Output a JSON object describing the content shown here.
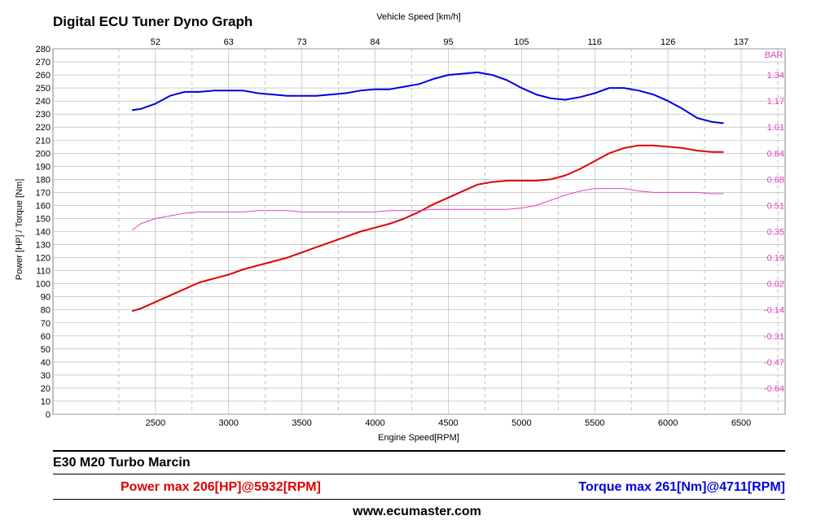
{
  "title": "Digital ECU Tuner Dyno Graph",
  "vehicle_name": "E30 M20 Turbo Marcin",
  "power_max_label": "Power max 206[HP]@5932[RPM]",
  "torque_max_label": "Torque max 261[Nm]@4711[RPM]",
  "website": "www.ecumaster.com",
  "colors": {
    "power": "#e00000",
    "torque": "#0000e0",
    "boost": "#e040c0",
    "grid": "#b0b0b0"
  },
  "chart_data": {
    "type": "line",
    "xlabel": "Engine Speed[RPM]",
    "ylabel": "Power [HP] / Torque [Nm]",
    "x2label": "Vehicle Speed [km/h]",
    "y2label": "BAR",
    "xlim": [
      1800,
      6800
    ],
    "ylim": [
      0,
      280
    ],
    "x_ticks": [
      2500,
      3000,
      3500,
      4000,
      4500,
      5000,
      5500,
      6000,
      6500
    ],
    "x_tick_labels": [
      "2500",
      "3000",
      "3500",
      "4000",
      "4500",
      "5000",
      "5500",
      "6000",
      "6500"
    ],
    "y_ticks": [
      0,
      10,
      20,
      30,
      40,
      50,
      60,
      70,
      80,
      90,
      100,
      110,
      120,
      130,
      140,
      150,
      160,
      170,
      180,
      190,
      200,
      210,
      220,
      230,
      240,
      250,
      260,
      270,
      280
    ],
    "y_tick_labels": [
      "0",
      "10",
      "20",
      "30",
      "40",
      "50",
      "60",
      "70",
      "80",
      "90",
      "100",
      "110",
      "120",
      "130",
      "140",
      "150",
      "160",
      "170",
      "180",
      "190",
      "200",
      "210",
      "220",
      "230",
      "240",
      "250",
      "260",
      "270",
      "280"
    ],
    "x2_ticks": [
      2500,
      3000,
      3500,
      4000,
      4500,
      5000,
      5500,
      6000,
      6500
    ],
    "x2_tick_labels": [
      "52",
      "63",
      "73",
      "84",
      "95",
      "105",
      "116",
      "126",
      "137"
    ],
    "y2_ticks": [
      80,
      100,
      120,
      140,
      160,
      180,
      200,
      220,
      240,
      260
    ],
    "y2_tick_labels": [
      "-0.64",
      "-0.47",
      "-0.31",
      "-0.14",
      "0.02",
      "0.19",
      "0.35",
      "0.51",
      "0.68",
      "0.84",
      "1.01",
      "1.17",
      "1.34"
    ],
    "y2_tick_positions": [
      20,
      40,
      60,
      80,
      100,
      120,
      140,
      160,
      180,
      200,
      220,
      240,
      260
    ],
    "vertical_dashed_grid": [
      2250,
      2750,
      3250,
      3750,
      4250,
      4750,
      5250,
      5750,
      6250,
      6750
    ],
    "grid": true,
    "series": [
      {
        "key": "torque",
        "x": [
          2340,
          2400,
          2500,
          2600,
          2700,
          2800,
          2900,
          3000,
          3100,
          3200,
          3300,
          3400,
          3500,
          3600,
          3700,
          3800,
          3900,
          4000,
          4100,
          4200,
          4300,
          4400,
          4500,
          4600,
          4700,
          4800,
          4900,
          5000,
          5100,
          5200,
          5300,
          5400,
          5500,
          5600,
          5700,
          5800,
          5900,
          6000,
          6100,
          6200,
          6300,
          6380
        ],
        "y": [
          233,
          234,
          238,
          244,
          247,
          247,
          248,
          248,
          248,
          246,
          245,
          244,
          244,
          244,
          245,
          246,
          248,
          249,
          249,
          251,
          253,
          257,
          260,
          261,
          262,
          260,
          256,
          250,
          245,
          242,
          241,
          243,
          246,
          250,
          250,
          248,
          245,
          240,
          234,
          227,
          224,
          223
        ]
      },
      {
        "key": "power",
        "x": [
          2340,
          2400,
          2500,
          2600,
          2700,
          2800,
          2900,
          3000,
          3100,
          3200,
          3300,
          3400,
          3500,
          3600,
          3700,
          3800,
          3900,
          4000,
          4100,
          4200,
          4300,
          4400,
          4500,
          4600,
          4700,
          4800,
          4900,
          5000,
          5100,
          5200,
          5300,
          5400,
          5500,
          5600,
          5700,
          5800,
          5900,
          6000,
          6100,
          6200,
          6300,
          6380
        ],
        "y": [
          79,
          81,
          86,
          91,
          96,
          101,
          104,
          107,
          111,
          114,
          117,
          120,
          124,
          128,
          132,
          136,
          140,
          143,
          146,
          150,
          155,
          161,
          166,
          171,
          176,
          178,
          179,
          179,
          179,
          180,
          183,
          188,
          194,
          200,
          204,
          206,
          206,
          205,
          204,
          202,
          201,
          201
        ]
      },
      {
        "key": "boost",
        "x": [
          2340,
          2400,
          2500,
          2600,
          2700,
          2800,
          2900,
          3000,
          3100,
          3200,
          3300,
          3400,
          3500,
          3600,
          3700,
          3800,
          3900,
          4000,
          4100,
          4200,
          4300,
          4400,
          4500,
          4600,
          4700,
          4800,
          4900,
          5000,
          5100,
          5200,
          5300,
          5400,
          5500,
          5600,
          5700,
          5800,
          5900,
          6000,
          6100,
          6200,
          6300,
          6380
        ],
        "y": [
          141,
          146,
          150,
          152,
          154,
          155,
          155,
          155,
          155,
          156,
          156,
          156,
          155,
          155,
          155,
          155,
          155,
          155,
          156,
          156,
          156,
          157,
          157,
          157,
          157,
          157,
          157,
          158,
          160,
          164,
          168,
          171,
          173,
          173,
          173,
          171,
          170,
          170,
          170,
          170,
          169,
          169
        ]
      }
    ]
  }
}
